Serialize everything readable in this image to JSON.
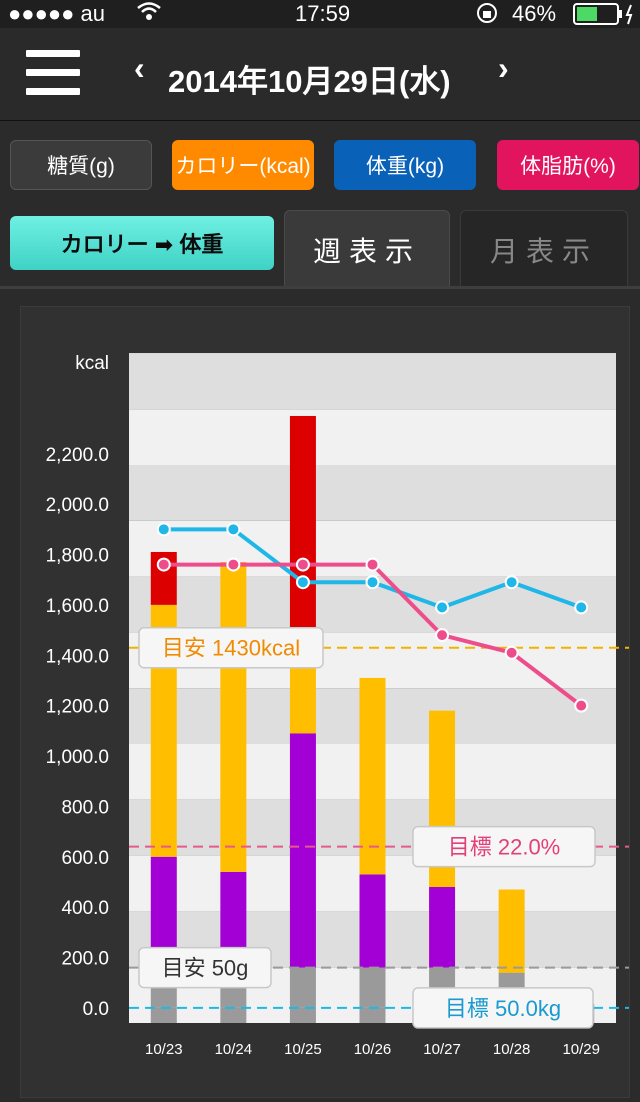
{
  "status": {
    "carrier": "●●●●● au",
    "time": "17:59",
    "battery": "46%"
  },
  "header": {
    "date": "2014年10月29日(水)",
    "prev": "‹",
    "next": "›"
  },
  "chips": [
    {
      "label": "糖質(g)",
      "color": "#3a3a3a"
    },
    {
      "label": "カロリー(kcal)",
      "color": "#ff8a00"
    },
    {
      "label": "体重(kg)",
      "color": "#0a62b8"
    },
    {
      "label": "体脂肪(%)",
      "color": "#e2145d"
    }
  ],
  "tabs": {
    "calorie_weight": "カロリー ➡ 体重",
    "week": "週表示",
    "month": "月表示"
  },
  "chart_data": {
    "type": "bar",
    "ylabel": "kcal",
    "ylim": [
      -60,
      2600
    ],
    "yticks": [
      "2,200.0",
      "2,000.0",
      "1,800.0",
      "1,600.0",
      "1,400.0",
      "1,200.0",
      "1,000.0",
      "800.0",
      "600.0",
      "400.0",
      "200.0",
      "0.0"
    ],
    "categories": [
      "10/23",
      "10/24",
      "10/25",
      "10/26",
      "10/27",
      "10/28",
      "10/29"
    ],
    "stack_series": [
      {
        "values": [
          160,
          160,
          160,
          160,
          160,
          140,
          0
        ],
        "color": "#9a9a9a"
      },
      {
        "values": [
          440,
          380,
          930,
          370,
          320,
          0,
          0
        ],
        "color": "#a300d6"
      },
      {
        "values": [
          1000,
          1230,
          260,
          780,
          700,
          330,
          0
        ],
        "color": "#ffbf00"
      },
      {
        "values": [
          210,
          0,
          1000,
          0,
          0,
          0,
          0
        ],
        "color": "#dd0000"
      }
    ],
    "weight_line": {
      "color": "#1fb6e8",
      "y": [
        1900,
        1900,
        1690,
        1690,
        1590,
        1690,
        1590
      ]
    },
    "fat_line": {
      "color": "#ee4d8c",
      "y": [
        1760,
        1760,
        1760,
        1760,
        1480,
        1410,
        1200
      ]
    },
    "reference_lines": [
      {
        "label": "目安 1430kcal",
        "value": 1430,
        "color": "#f0b400",
        "text_color": "#f08a00"
      },
      {
        "label": "目標 22.0%",
        "value": 640,
        "color": "#e8588f",
        "text_color": "#e3407a"
      },
      {
        "label": "目安 50g",
        "value": 160,
        "color": "#9a9a9a",
        "text_color": "#333333"
      },
      {
        "label": "目標 50.0kg",
        "value": 0,
        "color": "#1fb6e8",
        "text_color": "#1a9ad0"
      }
    ]
  }
}
